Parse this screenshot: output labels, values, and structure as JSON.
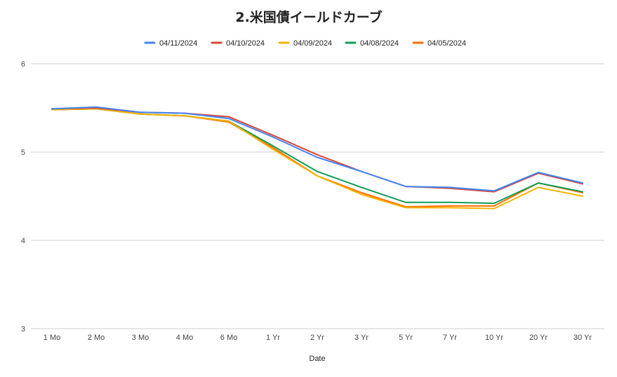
{
  "chart_data": {
    "type": "line",
    "title": "2.米国債イールドカーブ",
    "xlabel": "Date",
    "ylabel": "",
    "ylim": [
      3,
      6
    ],
    "yticks": [
      "3",
      "4",
      "5",
      "6"
    ],
    "legend_position": "top",
    "grid": true,
    "categories": [
      "1 Mo",
      "2 Mo",
      "3 Mo",
      "4 Mo",
      "6 Mo",
      "1 Yr",
      "2 Yr",
      "3 Yr",
      "5 Yr",
      "7 Yr",
      "10 Yr",
      "20 Yr",
      "30 Yr"
    ],
    "series": [
      {
        "name": "04/11/2024",
        "color": "#4285f4",
        "values": [
          5.49,
          5.51,
          5.45,
          5.44,
          5.38,
          5.17,
          4.94,
          4.78,
          4.61,
          4.6,
          4.56,
          4.77,
          4.65
        ]
      },
      {
        "name": "04/10/2024",
        "color": "#db4437",
        "values": [
          5.49,
          5.5,
          5.45,
          5.44,
          5.4,
          5.19,
          4.97,
          4.78,
          4.61,
          4.59,
          4.55,
          4.76,
          4.64
        ]
      },
      {
        "name": "04/09/2024",
        "color": "#f4b400",
        "values": [
          5.48,
          5.49,
          5.43,
          5.41,
          5.35,
          5.03,
          4.73,
          4.52,
          4.37,
          4.37,
          4.36,
          4.6,
          4.5
        ]
      },
      {
        "name": "04/08/2024",
        "color": "#0f9d58",
        "values": [
          5.48,
          5.49,
          5.43,
          5.41,
          5.35,
          5.07,
          4.78,
          4.6,
          4.43,
          4.43,
          4.42,
          4.65,
          4.55
        ]
      },
      {
        "name": "04/05/2024",
        "color": "#ff6d01",
        "values": [
          5.48,
          5.49,
          5.43,
          5.41,
          5.34,
          5.05,
          4.73,
          4.54,
          4.38,
          4.39,
          4.39,
          4.65,
          4.54
        ]
      }
    ]
  }
}
